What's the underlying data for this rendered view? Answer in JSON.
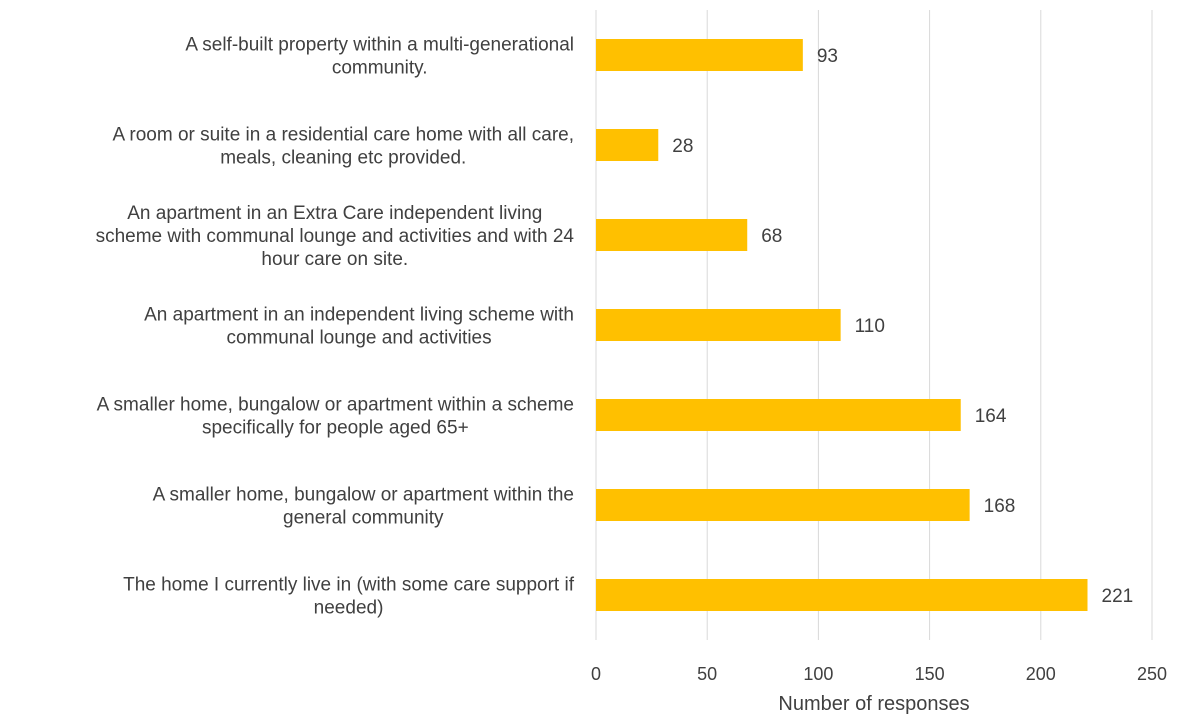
{
  "chart_data": {
    "type": "bar",
    "orientation": "horizontal",
    "title": "",
    "xlabel": "Number of responses",
    "ylabel": "",
    "xlim": [
      0,
      250
    ],
    "x_ticks": [
      0,
      50,
      100,
      150,
      200,
      250
    ],
    "grid": true,
    "legend": "none",
    "bar_color": "#FFC000",
    "categories": [
      [
        "A self-built property within a multi-generational",
        "community."
      ],
      [
        "A room or suite in a residential care home with all care,",
        "meals, cleaning etc provided."
      ],
      [
        "An apartment in an Extra Care independent living",
        "scheme with communal lounge and activities and with 24",
        "hour care on site."
      ],
      [
        "An apartment in an independent living scheme with",
        "communal lounge and activities"
      ],
      [
        "A smaller home, bungalow or apartment within a scheme",
        "specifically for people aged 65+"
      ],
      [
        "A smaller home, bungalow or apartment within the",
        "general community"
      ],
      [
        "The home I currently live in (with some care support if",
        "needed)"
      ]
    ],
    "values": [
      93,
      28,
      68,
      110,
      164,
      168,
      221
    ]
  }
}
